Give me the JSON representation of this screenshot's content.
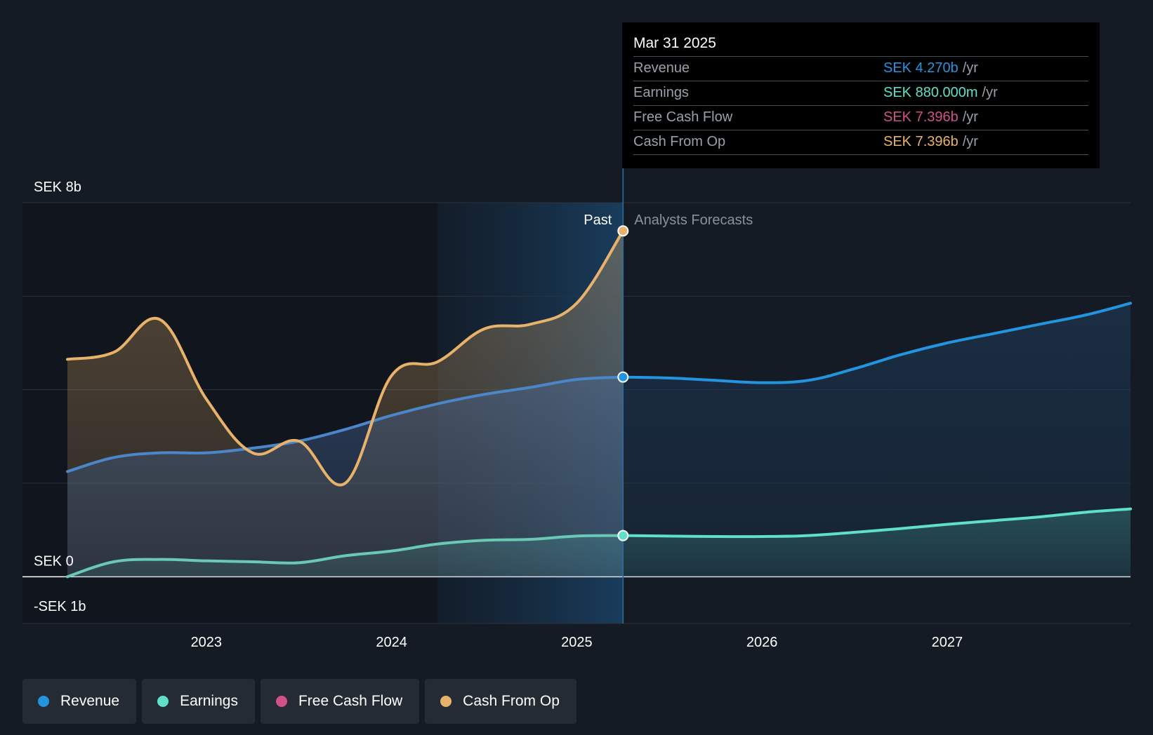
{
  "chart_data": {
    "type": "area",
    "currency": "SEK",
    "y_tick_labels": [
      "SEK 8b",
      "SEK 0",
      "-SEK 1b"
    ],
    "ylim": [
      -1,
      8
    ],
    "x_tick_labels": [
      "2023",
      "2024",
      "2025",
      "2026",
      "2027"
    ],
    "xlim": [
      2022.25,
      2027.99
    ],
    "divider_x": 2025.25,
    "highlight_start_x": 2024.25,
    "past_label": "Past",
    "forecast_label": "Analysts Forecasts",
    "series": [
      {
        "name": "Revenue",
        "color": "#2394df",
        "values_x": [
          2022.25,
          2022.5,
          2022.75,
          2023.0,
          2023.25,
          2023.5,
          2023.75,
          2024.0,
          2024.25,
          2024.5,
          2024.75,
          2025.0,
          2025.25,
          2025.5,
          2025.75,
          2026.0,
          2026.25,
          2026.5,
          2026.75,
          2027.0,
          2027.25,
          2027.5,
          2027.75,
          2027.99
        ],
        "values_y": [
          2.25,
          2.55,
          2.65,
          2.65,
          2.75,
          2.9,
          3.15,
          3.45,
          3.7,
          3.9,
          4.05,
          4.22,
          4.27,
          4.25,
          4.2,
          4.15,
          4.2,
          4.45,
          4.75,
          5.0,
          5.2,
          5.4,
          5.6,
          5.85
        ]
      },
      {
        "name": "Earnings",
        "color": "#5ee0c9",
        "values_x": [
          2022.25,
          2022.5,
          2022.75,
          2023.0,
          2023.25,
          2023.5,
          2023.75,
          2024.0,
          2024.25,
          2024.5,
          2024.75,
          2025.0,
          2025.25,
          2025.5,
          2025.75,
          2026.0,
          2026.25,
          2026.5,
          2026.75,
          2027.0,
          2027.25,
          2027.5,
          2027.75,
          2027.99
        ],
        "values_y": [
          0.0,
          0.32,
          0.37,
          0.34,
          0.32,
          0.3,
          0.45,
          0.55,
          0.7,
          0.78,
          0.8,
          0.87,
          0.88,
          0.87,
          0.86,
          0.86,
          0.88,
          0.95,
          1.03,
          1.12,
          1.2,
          1.28,
          1.38,
          1.45
        ]
      },
      {
        "name": "Free Cash Flow",
        "color": "#d1508a",
        "values_x": [
          2022.25,
          2022.5,
          2022.75,
          2023.0,
          2023.25,
          2023.5,
          2023.75,
          2024.0,
          2024.25,
          2024.5,
          2024.75,
          2025.0,
          2025.25
        ],
        "values_y": [
          4.65,
          4.8,
          5.5,
          3.8,
          2.65,
          2.9,
          2.0,
          4.3,
          4.6,
          5.3,
          5.4,
          5.85,
          7.396
        ]
      },
      {
        "name": "Cash From Op",
        "color": "#e9b26b",
        "values_x": [
          2022.25,
          2022.5,
          2022.75,
          2023.0,
          2023.25,
          2023.5,
          2023.75,
          2024.0,
          2024.25,
          2024.5,
          2024.75,
          2025.0,
          2025.25
        ],
        "values_y": [
          4.65,
          4.8,
          5.5,
          3.8,
          2.65,
          2.9,
          2.0,
          4.3,
          4.6,
          5.3,
          5.4,
          5.85,
          7.396
        ]
      }
    ]
  },
  "tooltip": {
    "date": "Mar 31 2025",
    "rows": [
      {
        "name": "Revenue",
        "value": "SEK 4.270b",
        "unit": "/yr",
        "color": "#2394df"
      },
      {
        "name": "Earnings",
        "value": "SEK 880.000m",
        "unit": "/yr",
        "color": "#5ee0c9"
      },
      {
        "name": "Free Cash Flow",
        "value": "SEK 7.396b",
        "unit": "/yr",
        "color": "#d1508a"
      },
      {
        "name": "Cash From Op",
        "value": "SEK 7.396b",
        "unit": "/yr",
        "color": "#e9b26b"
      }
    ]
  },
  "legend": [
    {
      "label": "Revenue",
      "color": "#2394df"
    },
    {
      "label": "Earnings",
      "color": "#5ee0c9"
    },
    {
      "label": "Free Cash Flow",
      "color": "#d1508a"
    },
    {
      "label": "Cash From Op",
      "color": "#e9b26b"
    }
  ]
}
